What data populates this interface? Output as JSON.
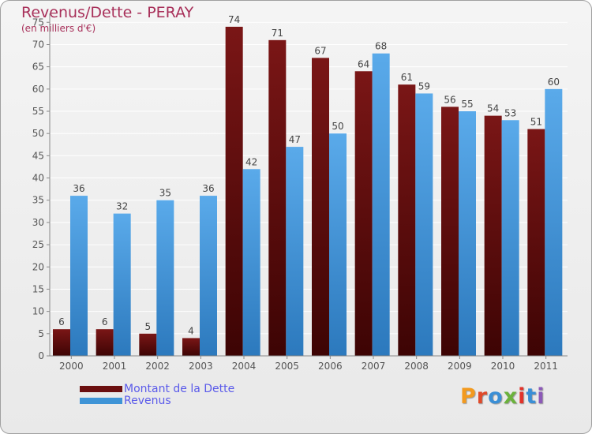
{
  "title": "Revenus/Dette - PERAY",
  "subtitle": "(en milliers d'€)",
  "colors": {
    "dette": "#6b0f0f",
    "revenus": "#3f94d6",
    "title": "#a8305a",
    "legend_text": "#5a5aea",
    "logo": [
      "#f39a1e",
      "#e04a2a",
      "#3a8fd6",
      "#6bb23c",
      "#e2332a",
      "#3a8fd6",
      "#8c59b8"
    ]
  },
  "logo_text": "Proxiti",
  "chart_data": {
    "type": "bar",
    "categories": [
      "2000",
      "2001",
      "2002",
      "2003",
      "2004",
      "2005",
      "2006",
      "2007",
      "2008",
      "2009",
      "2010",
      "2011"
    ],
    "series": [
      {
        "name": "Montant de la Dette",
        "values": [
          6,
          6,
          5,
          4,
          74,
          71,
          67,
          64,
          61,
          56,
          54,
          51
        ]
      },
      {
        "name": "Revenus",
        "values": [
          36,
          32,
          35,
          36,
          42,
          47,
          50,
          68,
          59,
          55,
          53,
          60
        ]
      }
    ],
    "yticks": [
      0,
      5,
      10,
      15,
      20,
      25,
      30,
      35,
      40,
      45,
      50,
      55,
      60,
      65,
      70,
      75
    ],
    "ylim": [
      0,
      77
    ],
    "grid": true,
    "legend": "bottom-left",
    "data_labels": true
  }
}
